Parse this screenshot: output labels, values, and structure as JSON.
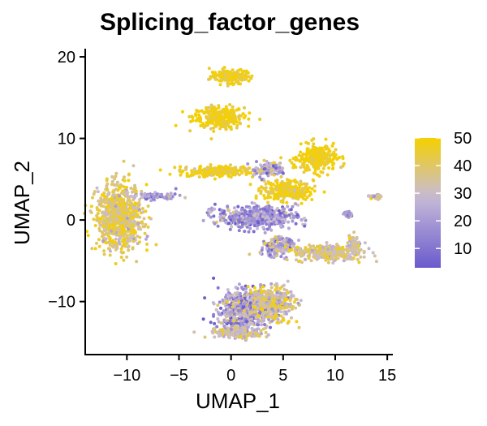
{
  "chart_data": {
    "type": "scatter",
    "title": "Splicing_factor_genes",
    "xlabel": "UMAP_1",
    "ylabel": "UMAP_2",
    "xlim": [
      -14,
      15.3
    ],
    "ylim": [
      -16.5,
      21
    ],
    "x_ticks": [
      {
        "value": -10,
        "label": "−10"
      },
      {
        "value": -5,
        "label": "−5"
      },
      {
        "value": 0,
        "label": "0"
      },
      {
        "value": 5,
        "label": "5"
      },
      {
        "value": 10,
        "label": "10"
      },
      {
        "value": 15,
        "label": "15"
      }
    ],
    "y_ticks": [
      {
        "value": -10,
        "label": "−10"
      },
      {
        "value": 0,
        "label": "0"
      },
      {
        "value": 10,
        "label": "10"
      },
      {
        "value": 20,
        "label": "20"
      }
    ],
    "color_scale": {
      "min": 3,
      "max": 50,
      "low_color": "#6a5acd",
      "mid_color": "#c8bcd8",
      "high_color": "#f5d000",
      "ticks": [
        {
          "value": 10,
          "label": "10"
        },
        {
          "value": 20,
          "label": "20"
        },
        {
          "value": 30,
          "label": "30"
        },
        {
          "value": 40,
          "label": "40"
        },
        {
          "value": 50,
          "label": "50"
        }
      ]
    },
    "legend_position": "right",
    "grid": false,
    "clusters": [
      {
        "name": "top-island",
        "center": [
          0,
          17.6
        ],
        "spread": [
          1.8,
          0.8
        ],
        "value": 47,
        "value_spread": 5
      },
      {
        "name": "upper-island",
        "center": [
          -1.2,
          12.6
        ],
        "spread": [
          2.2,
          1.2
        ],
        "value": 48,
        "value_spread": 4
      },
      {
        "name": "mid-left-band",
        "center": [
          -1.5,
          6.0
        ],
        "spread": [
          3.2,
          0.6
        ],
        "value": 46,
        "value_spread": 5
      },
      {
        "name": "right-arm-upper",
        "center": [
          8.3,
          7.5
        ],
        "spread": [
          1.7,
          1.5
        ],
        "value": 48,
        "value_spread": 4
      },
      {
        "name": "right-mid-blob",
        "center": [
          5.5,
          3.6
        ],
        "spread": [
          2.2,
          1.1
        ],
        "value": 47,
        "value_spread": 5
      },
      {
        "name": "center-hub",
        "center": [
          3.6,
          6.2
        ],
        "spread": [
          1.5,
          0.8
        ],
        "value": 25,
        "value_spread": 10
      },
      {
        "name": "left-cluster",
        "center": [
          -10.7,
          0.3
        ],
        "spread": [
          2.0,
          3.5
        ],
        "value": 40,
        "value_spread": 8
      },
      {
        "name": "left-cluster-arm",
        "center": [
          -7.4,
          2.9
        ],
        "spread": [
          2.0,
          0.4
        ],
        "value": 20,
        "value_spread": 8
      },
      {
        "name": "center-star",
        "center": [
          2.5,
          0.4
        ],
        "spread": [
          3.5,
          1.2
        ],
        "value": 18,
        "value_spread": 9
      },
      {
        "name": "center-lower",
        "center": [
          4.5,
          -3.3
        ],
        "spread": [
          1.5,
          1.1
        ],
        "value": 24,
        "value_spread": 10
      },
      {
        "name": "right-tail",
        "center": [
          9.3,
          -4.0
        ],
        "spread": [
          3.0,
          0.9
        ],
        "value": 36,
        "value_spread": 7
      },
      {
        "name": "right-tail-end",
        "center": [
          11.7,
          -3.0
        ],
        "spread": [
          0.6,
          1.1
        ],
        "value": 33,
        "value_spread": 5
      },
      {
        "name": "small-right-dot",
        "center": [
          11.3,
          0.7
        ],
        "spread": [
          0.4,
          0.3
        ],
        "value": 20,
        "value_spread": 6
      },
      {
        "name": "far-right-dot",
        "center": [
          13.8,
          2.8
        ],
        "spread": [
          0.6,
          0.3
        ],
        "value": 35,
        "value_spread": 10
      },
      {
        "name": "bottom-island",
        "center": [
          1.3,
          -11.0
        ],
        "spread": [
          2.3,
          2.2
        ],
        "value": 22,
        "value_spread": 11
      },
      {
        "name": "bottom-island-right",
        "center": [
          4.0,
          -10.2
        ],
        "spread": [
          1.8,
          1.8
        ],
        "value": 36,
        "value_spread": 10
      },
      {
        "name": "bottom-island-lower",
        "center": [
          0.5,
          -13.8
        ],
        "spread": [
          2.5,
          0.6
        ],
        "value": 33,
        "value_spread": 8
      }
    ]
  }
}
